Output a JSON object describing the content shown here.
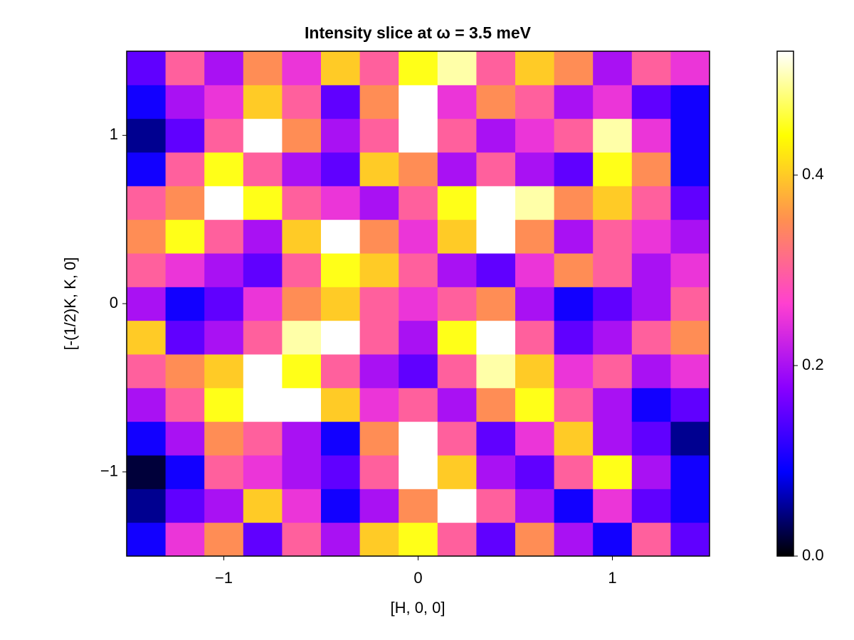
{
  "chart_data": {
    "type": "heatmap",
    "title": "Intensity slice at ω = 3.5 meV",
    "xlabel": "[H, 0, 0]",
    "ylabel": "[-(1/2)K, K, 0]",
    "x": [
      -1.4,
      -1.2,
      -1.0,
      -0.8,
      -0.6,
      -0.4,
      -0.2,
      0.0,
      0.2,
      0.4,
      0.6,
      0.8,
      1.0,
      1.2,
      1.4
    ],
    "y": [
      -1.4,
      -1.2,
      -1.0,
      -0.8,
      -0.6,
      -0.4,
      -0.2,
      0.0,
      0.2,
      0.4,
      0.6,
      0.8,
      1.0,
      1.2,
      1.4
    ],
    "z": [
      [
        0.1,
        0.25,
        0.35,
        0.15,
        0.3,
        0.2,
        0.4,
        0.45,
        0.3,
        0.15,
        0.35,
        0.2,
        0.1,
        0.3,
        0.15
      ],
      [
        0.05,
        0.15,
        0.2,
        0.4,
        0.25,
        0.1,
        0.2,
        0.35,
        0.55,
        0.3,
        0.2,
        0.1,
        0.25,
        0.15,
        0.1
      ],
      [
        0.02,
        0.1,
        0.3,
        0.25,
        0.2,
        0.15,
        0.3,
        0.6,
        0.4,
        0.2,
        0.15,
        0.3,
        0.45,
        0.2,
        0.1
      ],
      [
        0.1,
        0.2,
        0.35,
        0.3,
        0.2,
        0.1,
        0.35,
        0.55,
        0.3,
        0.15,
        0.25,
        0.4,
        0.2,
        0.15,
        0.05
      ],
      [
        0.2,
        0.3,
        0.45,
        0.6,
        0.55,
        0.4,
        0.25,
        0.3,
        0.2,
        0.35,
        0.45,
        0.3,
        0.2,
        0.1,
        0.15
      ],
      [
        0.3,
        0.35,
        0.4,
        0.6,
        0.45,
        0.3,
        0.2,
        0.15,
        0.3,
        0.5,
        0.4,
        0.25,
        0.3,
        0.2,
        0.25
      ],
      [
        0.4,
        0.15,
        0.2,
        0.3,
        0.5,
        0.6,
        0.3,
        0.2,
        0.45,
        0.6,
        0.3,
        0.15,
        0.2,
        0.3,
        0.35
      ],
      [
        0.2,
        0.1,
        0.15,
        0.25,
        0.35,
        0.4,
        0.3,
        0.25,
        0.3,
        0.35,
        0.2,
        0.1,
        0.15,
        0.2,
        0.3
      ],
      [
        0.3,
        0.25,
        0.2,
        0.15,
        0.3,
        0.45,
        0.4,
        0.3,
        0.2,
        0.15,
        0.25,
        0.35,
        0.3,
        0.2,
        0.25
      ],
      [
        0.35,
        0.45,
        0.3,
        0.2,
        0.4,
        0.6,
        0.35,
        0.25,
        0.4,
        0.55,
        0.35,
        0.2,
        0.3,
        0.25,
        0.2
      ],
      [
        0.3,
        0.35,
        0.55,
        0.45,
        0.3,
        0.25,
        0.2,
        0.3,
        0.45,
        0.6,
        0.5,
        0.35,
        0.4,
        0.3,
        0.15
      ],
      [
        0.1,
        0.3,
        0.45,
        0.3,
        0.2,
        0.15,
        0.4,
        0.35,
        0.2,
        0.3,
        0.2,
        0.15,
        0.45,
        0.35,
        0.1
      ],
      [
        0.05,
        0.15,
        0.3,
        0.55,
        0.35,
        0.2,
        0.3,
        0.55,
        0.3,
        0.2,
        0.25,
        0.3,
        0.5,
        0.25,
        0.1
      ],
      [
        0.1,
        0.2,
        0.25,
        0.4,
        0.3,
        0.15,
        0.35,
        0.6,
        0.25,
        0.35,
        0.3,
        0.2,
        0.25,
        0.15,
        0.1
      ],
      [
        0.15,
        0.3,
        0.2,
        0.35,
        0.25,
        0.4,
        0.3,
        0.45,
        0.5,
        0.3,
        0.4,
        0.35,
        0.2,
        0.3,
        0.25
      ]
    ],
    "xlim": [
      -1.5,
      1.5
    ],
    "ylim": [
      -1.5,
      1.5
    ],
    "xticks": [
      {
        "value": -1,
        "label": "−1"
      },
      0,
      1
    ],
    "yticks": [
      {
        "value": -1,
        "label": "−1"
      },
      0,
      1
    ],
    "clim": [
      0,
      0.53
    ],
    "cticks": [
      {
        "value": 0,
        "label": "0.0"
      },
      0.2,
      0.4
    ],
    "colormap": [
      "#000000",
      "#0000ff",
      "#8a00ff",
      "#ff40d0",
      "#ff9050",
      "#ffff00",
      "#ffffff"
    ]
  }
}
